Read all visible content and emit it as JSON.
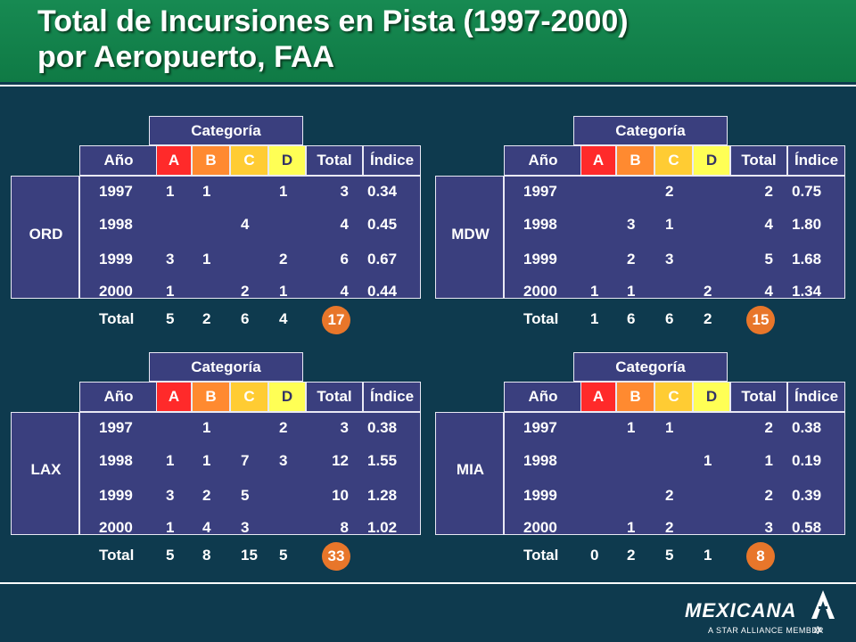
{
  "title": {
    "line1": "Total de Incursiones en Pista (1997-2000)",
    "line2": "por Aeropuerto, FAA"
  },
  "labels": {
    "category": "Categoría",
    "year": "Año",
    "a": "A",
    "b": "B",
    "c": "C",
    "d": "D",
    "total": "Total",
    "index": "Índice",
    "total_row": "Total"
  },
  "colors": {
    "background": "#0e3a4e",
    "header": "#178a52",
    "cell": "#3a3f7e",
    "a": "#ff2a2a",
    "b": "#ff8a30",
    "c": "#ffcc33",
    "d": "#ffff55",
    "grand_total": "#e8762a"
  },
  "tables": [
    {
      "airport": "ORD",
      "rows": [
        {
          "year": "1997",
          "a": "1",
          "b": "1",
          "c": "",
          "d": "1",
          "total": "3",
          "index": "0.34"
        },
        {
          "year": "1998",
          "a": "",
          "b": "",
          "c": "4",
          "d": "",
          "total": "4",
          "index": "0.45"
        },
        {
          "year": "1999",
          "a": "3",
          "b": "1",
          "c": "",
          "d": "2",
          "total": "6",
          "index": "0.67"
        },
        {
          "year": "2000",
          "a": "1",
          "b": "",
          "c": "2",
          "d": "1",
          "total": "4",
          "index": "0.44"
        }
      ],
      "totals": {
        "a": "5",
        "b": "2",
        "c": "6",
        "d": "4",
        "grand": "17"
      }
    },
    {
      "airport": "MDW",
      "rows": [
        {
          "year": "1997",
          "a": "",
          "b": "",
          "c": "2",
          "d": "",
          "total": "2",
          "index": "0.75"
        },
        {
          "year": "1998",
          "a": "",
          "b": "3",
          "c": "1",
          "d": "",
          "total": "4",
          "index": "1.80"
        },
        {
          "year": "1999",
          "a": "",
          "b": "2",
          "c": "3",
          "d": "",
          "total": "5",
          "index": "1.68"
        },
        {
          "year": "2000",
          "a": "1",
          "b": "1",
          "c": "",
          "d": "2",
          "total": "4",
          "index": "1.34"
        }
      ],
      "totals": {
        "a": "1",
        "b": "6",
        "c": "6",
        "d": "2",
        "grand": "15"
      }
    },
    {
      "airport": "LAX",
      "rows": [
        {
          "year": "1997",
          "a": "",
          "b": "1",
          "c": "",
          "d": "2",
          "total": "3",
          "index": "0.38"
        },
        {
          "year": "1998",
          "a": "1",
          "b": "1",
          "c": "7",
          "d": "3",
          "total": "12",
          "index": "1.55"
        },
        {
          "year": "1999",
          "a": "3",
          "b": "2",
          "c": "5",
          "d": "",
          "total": "10",
          "index": "1.28"
        },
        {
          "year": "2000",
          "a": "1",
          "b": "4",
          "c": "3",
          "d": "",
          "total": "8",
          "index": "1.02"
        }
      ],
      "totals": {
        "a": "5",
        "b": "8",
        "c": "15",
        "d": "5",
        "grand": "33"
      }
    },
    {
      "airport": "MIA",
      "rows": [
        {
          "year": "1997",
          "a": "",
          "b": "1",
          "c": "1",
          "d": "",
          "total": "2",
          "index": "0.38"
        },
        {
          "year": "1998",
          "a": "",
          "b": "",
          "c": "",
          "d": "1",
          "total": "1",
          "index": "0.19"
        },
        {
          "year": "1999",
          "a": "",
          "b": "",
          "c": "2",
          "d": "",
          "total": "2",
          "index": "0.39"
        },
        {
          "year": "2000",
          "a": "",
          "b": "1",
          "c": "2",
          "d": "",
          "total": "3",
          "index": "0.58"
        }
      ],
      "totals": {
        "a": "0",
        "b": "2",
        "c": "5",
        "d": "1",
        "grand": "8"
      }
    }
  ],
  "logo": {
    "word": "MEXICANA",
    "tagline": "A STAR ALLIANCE MEMBER",
    "icon": "mexicana-logo-icon"
  }
}
